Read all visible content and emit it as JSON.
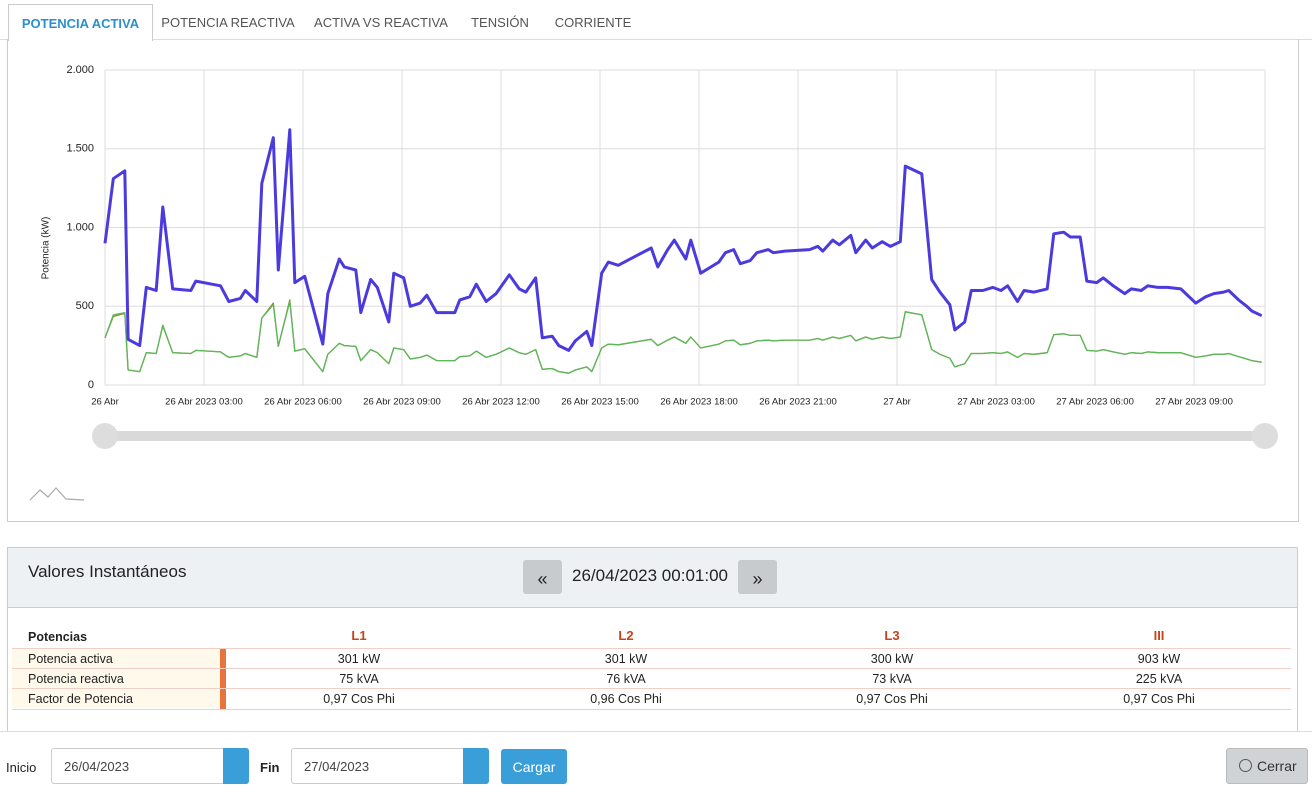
{
  "tabs": [
    "POTENCIA ACTIVA",
    "POTENCIA REACTIVA",
    "ACTIVA VS REACTIVA",
    "TENSIÓN",
    "CORRIENTE"
  ],
  "chart_data": {
    "type": "line",
    "ylabel": "Potencia (kW)",
    "grid": true,
    "x": [
      0,
      0.25,
      0.6,
      0.7,
      1.05,
      1.25,
      1.55,
      1.75,
      2.05,
      2.6,
      2.75,
      3.5,
      3.75,
      4.1,
      4.25,
      4.6,
      4.75,
      5.1,
      5.25,
      5.6,
      5.75,
      6.05,
      6.6,
      6.75,
      7.1,
      7.25,
      7.6,
      7.75,
      8.05,
      8.25,
      8.6,
      8.75,
      9.05,
      9.25,
      9.55,
      9.75,
      10.05,
      10.6,
      10.75,
      11.05,
      11.25,
      11.55,
      11.85,
      12.25,
      12.55,
      12.75,
      13.05,
      13.25,
      13.55,
      13.75,
      14.05,
      14.25,
      14.6,
      14.75,
      15.05,
      15.25,
      15.55,
      16.55,
      16.75,
      17.05,
      17.25,
      17.6,
      17.75,
      18.05,
      18.6,
      18.8,
      19.05,
      19.25,
      19.55,
      19.75,
      20.1,
      20.25,
      20.6,
      21.35,
      21.6,
      21.75,
      22.05,
      22.25,
      22.6,
      22.75,
      23.05,
      23.25,
      23.55,
      23.8,
      24.1,
      24.25,
      24.75,
      25.05,
      25.3,
      25.6,
      25.75,
      26.05,
      26.25,
      26.6,
      26.9,
      27.15,
      27.35,
      27.65,
      27.85,
      28.15,
      28.55,
      28.75,
      29.05,
      29.25,
      29.55,
      29.75,
      30.05,
      30.25,
      30.55,
      30.9,
      31.1,
      31.4,
      31.6,
      31.9,
      32.2,
      32.6,
      32.75,
      33.05,
      33.35,
      33.6,
      33.9,
      34.05,
      34.35,
      34.6,
      34.75,
      35.05
    ],
    "series": [
      {
        "color": "#4b3bdf",
        "values": [
          900,
          1310,
          1360,
          290,
          250,
          620,
          600,
          1130,
          610,
          600,
          660,
          630,
          530,
          550,
          600,
          530,
          1280,
          1570,
          730,
          1620,
          650,
          690,
          260,
          580,
          800,
          750,
          730,
          460,
          670,
          620,
          400,
          710,
          680,
          500,
          520,
          570,
          460,
          460,
          540,
          560,
          640,
          530,
          580,
          700,
          610,
          590,
          680,
          300,
          310,
          250,
          220,
          280,
          340,
          250,
          710,
          780,
          760,
          870,
          750,
          860,
          920,
          800,
          920,
          710,
          780,
          840,
          860,
          770,
          790,
          840,
          860,
          840,
          850,
          860,
          880,
          850,
          920,
          890,
          950,
          840,
          920,
          870,
          910,
          880,
          910,
          1390,
          1340,
          670,
          590,
          510,
          350,
          400,
          600,
          600,
          620,
          600,
          630,
          530,
          600,
          590,
          610,
          960,
          970,
          940,
          940,
          660,
          650,
          680,
          630,
          580,
          610,
          600,
          630,
          620,
          620,
          610,
          580,
          520,
          560,
          580,
          590,
          600,
          540,
          500,
          470,
          440
        ]
      },
      {
        "color": "#5cb85c",
        "values": [
          300,
          445,
          460,
          95,
          85,
          205,
          200,
          380,
          205,
          200,
          220,
          210,
          175,
          185,
          200,
          175,
          425,
          510,
          245,
          530,
          215,
          230,
          85,
          195,
          265,
          250,
          245,
          155,
          225,
          205,
          135,
          235,
          225,
          165,
          175,
          190,
          155,
          155,
          180,
          185,
          215,
          175,
          195,
          235,
          205,
          195,
          225,
          100,
          105,
          85,
          75,
          95,
          115,
          85,
          235,
          260,
          255,
          290,
          250,
          285,
          305,
          265,
          305,
          235,
          260,
          280,
          285,
          255,
          265,
          280,
          285,
          280,
          285,
          285,
          295,
          285,
          305,
          295,
          315,
          280,
          305,
          290,
          305,
          295,
          305,
          465,
          445,
          225,
          195,
          170,
          115,
          135,
          200,
          200,
          205,
          200,
          210,
          175,
          200,
          195,
          205,
          320,
          325,
          315,
          315,
          220,
          215,
          225,
          210,
          195,
          205,
          200,
          210,
          205,
          205,
          205,
          195,
          175,
          185,
          195,
          195,
          200,
          180,
          165,
          155,
          145
        ]
      },
      {
        "color": "#8a8a2a",
        "values": [
          300,
          435,
          455,
          95,
          85,
          205,
          200,
          375,
          205,
          200,
          220,
          210,
          175,
          185,
          200,
          175,
          425,
          520,
          245,
          540,
          215,
          230,
          85,
          195,
          265,
          250,
          245,
          155,
          225,
          205,
          135,
          235,
          225,
          165,
          175,
          190,
          155,
          155,
          180,
          185,
          215,
          175,
          195,
          235,
          205,
          195,
          225,
          100,
          105,
          85,
          75,
          95,
          115,
          85,
          235,
          260,
          255,
          290,
          250,
          285,
          305,
          265,
          305,
          235,
          260,
          280,
          285,
          255,
          265,
          280,
          285,
          280,
          285,
          285,
          295,
          285,
          305,
          295,
          315,
          280,
          305,
          290,
          305,
          295,
          305,
          465,
          445,
          225,
          195,
          170,
          115,
          135,
          200,
          200,
          205,
          200,
          210,
          175,
          200,
          195,
          205,
          320,
          325,
          315,
          315,
          220,
          215,
          225,
          210,
          195,
          205,
          200,
          210,
          205,
          205,
          205,
          195,
          175,
          185,
          195,
          195,
          200,
          180,
          165,
          155,
          145
        ]
      }
    ],
    "xlim": [
      0,
      35.15
    ],
    "xticks": [
      {
        "value": 0,
        "label": "26 Abr"
      },
      {
        "value": 3,
        "label": "26 Abr 2023 03:00"
      },
      {
        "value": 6,
        "label": "26 Abr 2023 06:00"
      },
      {
        "value": 9,
        "label": "26 Abr 2023 09:00"
      },
      {
        "value": 12,
        "label": "26 Abr 2023 12:00"
      },
      {
        "value": 15,
        "label": "26 Abr 2023 15:00"
      },
      {
        "value": 18,
        "label": "26 Abr 2023 18:00"
      },
      {
        "value": 21,
        "label": "26 Abr 2023 21:00"
      },
      {
        "value": 24,
        "label": "27 Abr"
      },
      {
        "value": 27,
        "label": "27 Abr 2023 03:00"
      },
      {
        "value": 30,
        "label": "27 Abr 2023 06:00"
      },
      {
        "value": 33,
        "label": "27 Abr 2023 09:00"
      }
    ],
    "ylim": [
      0,
      2000
    ],
    "yticks": [
      0,
      500,
      {
        "value": 1000,
        "label": "1.000"
      },
      {
        "value": 1500,
        "label": "1.500"
      },
      {
        "value": 2000,
        "label": "2.000"
      }
    ]
  },
  "instant": {
    "title": "Valores Instantáneos",
    "prev": "«",
    "date": "26/04/2023 00:01:00",
    "next": "»"
  },
  "table": {
    "columns": [
      "Potencias",
      "L1",
      "L2",
      "L3",
      "III"
    ],
    "rows": [
      [
        "Potencia activa",
        "301 kW",
        "301 kW",
        "300 kW",
        "903 kW"
      ],
      [
        "Potencia reactiva",
        "75 kVA",
        "76 kVA",
        "73 kVA",
        "225 kVA"
      ],
      [
        "Factor de Potencia",
        "0,97 Cos Phi",
        "0,96 Cos Phi",
        "0,97 Cos Phi",
        "0,97 Cos Phi"
      ]
    ]
  },
  "footer": {
    "start_label": "Inicio",
    "start_value": "26/04/2023",
    "end_label": "Fin",
    "end_value": "27/04/2023",
    "load": "Cargar",
    "close": "Cerrar"
  }
}
